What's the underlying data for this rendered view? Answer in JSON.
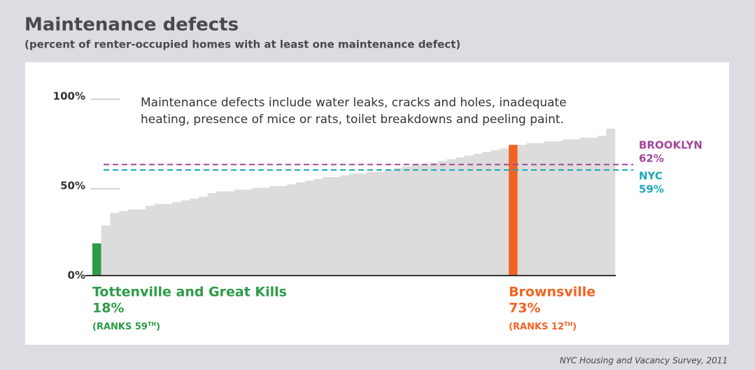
{
  "chart_data": {
    "type": "bar",
    "title": "Maintenance defects",
    "subtitle": "(percent of renter-occupied homes with at least one maintenance defect)",
    "note_lines": [
      "Maintenance defects include water leaks, cracks and holes, inadequate",
      "heating, presence of mice or rats, toilet breakdowns and peeling paint."
    ],
    "source": "NYC Housing and Vacancy Survey, 2011",
    "categories": [
      "Tottenville and Great Kills",
      null,
      null,
      null,
      null,
      null,
      null,
      null,
      null,
      null,
      null,
      null,
      null,
      null,
      null,
      null,
      null,
      null,
      null,
      null,
      null,
      null,
      null,
      null,
      null,
      null,
      null,
      null,
      null,
      null,
      null,
      null,
      null,
      null,
      null,
      null,
      null,
      null,
      null,
      null,
      null,
      null,
      null,
      null,
      null,
      null,
      null,
      "Brownsville",
      null,
      null,
      null,
      null,
      null,
      null,
      null,
      null,
      null,
      null,
      null
    ],
    "values": [
      18,
      28,
      35,
      36,
      37,
      37,
      39,
      40,
      40,
      41,
      42,
      43,
      44,
      46,
      47,
      47,
      48,
      48,
      49,
      49,
      50,
      50,
      51,
      52,
      53,
      54,
      55,
      55,
      56,
      57,
      57,
      58,
      58,
      59,
      60,
      61,
      62,
      62,
      63,
      64,
      65,
      66,
      67,
      68,
      69,
      70,
      71,
      73,
      73,
      74,
      74,
      75,
      75,
      76,
      76,
      77,
      77,
      78,
      82
    ],
    "value_labels": [
      "18%",
      null,
      null,
      null,
      null,
      null,
      null,
      null,
      null,
      null,
      null,
      null,
      null,
      null,
      null,
      null,
      null,
      null,
      null,
      null,
      null,
      null,
      null,
      null,
      null,
      null,
      null,
      null,
      null,
      null,
      null,
      null,
      null,
      null,
      null,
      null,
      null,
      null,
      null,
      null,
      null,
      null,
      null,
      null,
      null,
      null,
      null,
      "73%",
      null,
      null,
      null,
      null,
      null,
      null,
      null,
      null,
      null,
      null,
      null
    ],
    "rank_labels": [
      {
        "text": "(RANKS 59",
        "sup": "TH",
        "end": ")"
      },
      null,
      null,
      null,
      null,
      null,
      null,
      null,
      null,
      null,
      null,
      null,
      null,
      null,
      null,
      null,
      null,
      null,
      null,
      null,
      null,
      null,
      null,
      null,
      null,
      null,
      null,
      null,
      null,
      null,
      null,
      null,
      null,
      null,
      null,
      null,
      null,
      null,
      null,
      null,
      null,
      null,
      null,
      null,
      null,
      null,
      null,
      {
        "text": "(RANKS 12",
        "sup": "TH",
        "end": ")"
      },
      null,
      null,
      null,
      null,
      null,
      null,
      null,
      null,
      null,
      null,
      null
    ],
    "color": "#dcdcdc",
    "highlight_colors": [
      "#2e9b47",
      null,
      null,
      null,
      null,
      null,
      null,
      null,
      null,
      null,
      null,
      null,
      null,
      null,
      null,
      null,
      null,
      null,
      null,
      null,
      null,
      null,
      null,
      null,
      null,
      null,
      null,
      null,
      null,
      null,
      null,
      null,
      null,
      null,
      null,
      null,
      null,
      null,
      null,
      null,
      null,
      null,
      null,
      null,
      null,
      null,
      null,
      "#f26322",
      null,
      null,
      null,
      null,
      null,
      null,
      null,
      null,
      null,
      null,
      null
    ],
    "reference_lines": [
      {
        "name": "BROOKLYN",
        "value": 62,
        "label": "62%",
        "color": "#a3479c"
      },
      {
        "name": "NYC",
        "value": 59,
        "label": "59%",
        "color": "#1ca8ba"
      }
    ],
    "ylim": [
      0,
      100
    ],
    "yticks": [
      {
        "value": 0,
        "label": "0%"
      },
      {
        "value": 50,
        "label": "50%"
      },
      {
        "value": 100,
        "label": "100%"
      }
    ]
  }
}
